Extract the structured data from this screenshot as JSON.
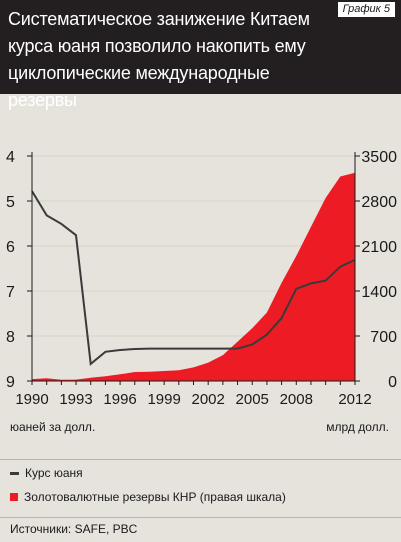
{
  "header": {
    "title_lines": [
      "Систематическое занижение Китаем",
      "курса юаня позволило накопить ему",
      "циклопические международные резервы"
    ],
    "badge": "График 5"
  },
  "colors": {
    "header_bg": "#231f20",
    "background": "#e6e3dd",
    "reserves": "#ed1c24",
    "rate_line": "#3a3a3a"
  },
  "units": {
    "left": "юаней за долл.",
    "right": "млрд долл."
  },
  "legend": {
    "rate": "Курс юаня",
    "reserves": "Золотовалютные резервы КНР (правая шкала)"
  },
  "sources": "Источники: SAFE, PBC",
  "chart_data": {
    "type": "line+area",
    "x_range": [
      1990,
      2012
    ],
    "x_ticks": [
      "1990",
      "1993",
      "1996",
      "1999",
      "2002",
      "2005",
      "2008",
      "2012"
    ],
    "x_tick_values": [
      1990,
      1993,
      1996,
      1999,
      2002,
      2005,
      2008,
      2012
    ],
    "left_axis": {
      "inverted": true,
      "ylim": [
        4,
        9
      ],
      "ticks": [
        "4",
        "5",
        "6",
        "7",
        "8",
        "9"
      ]
    },
    "right_axis": {
      "ylim": [
        0,
        3500
      ],
      "ticks": [
        "0",
        "700",
        "1400",
        "2100",
        "2800",
        "3500"
      ]
    },
    "series": [
      {
        "name": "Курс юаня",
        "axis": "left",
        "kind": "line",
        "x": [
          1990,
          1991,
          1992,
          1993,
          1994,
          1995,
          1996,
          1997,
          1998,
          1999,
          2000,
          2001,
          2002,
          2003,
          2004,
          2005,
          2006,
          2007,
          2008,
          2009,
          2010,
          2011,
          2012
        ],
        "values": [
          4.78,
          5.32,
          5.51,
          5.76,
          8.62,
          8.35,
          8.31,
          8.29,
          8.28,
          8.28,
          8.28,
          8.28,
          8.28,
          8.28,
          8.28,
          8.19,
          7.97,
          7.6,
          6.95,
          6.83,
          6.77,
          6.46,
          6.31
        ]
      },
      {
        "name": "Золотовалютные резервы КНР (правая шкала)",
        "axis": "right",
        "kind": "area",
        "x": [
          1990,
          1991,
          1992,
          1993,
          1994,
          1995,
          1996,
          1997,
          1998,
          1999,
          2000,
          2001,
          2002,
          2003,
          2004,
          2005,
          2006,
          2007,
          2008,
          2009,
          2010,
          2011,
          2012
        ],
        "values": [
          30,
          43,
          20,
          22,
          52,
          74,
          105,
          140,
          145,
          155,
          166,
          212,
          286,
          403,
          610,
          819,
          1066,
          1528,
          1946,
          2399,
          2847,
          3181,
          3240
        ]
      }
    ]
  }
}
